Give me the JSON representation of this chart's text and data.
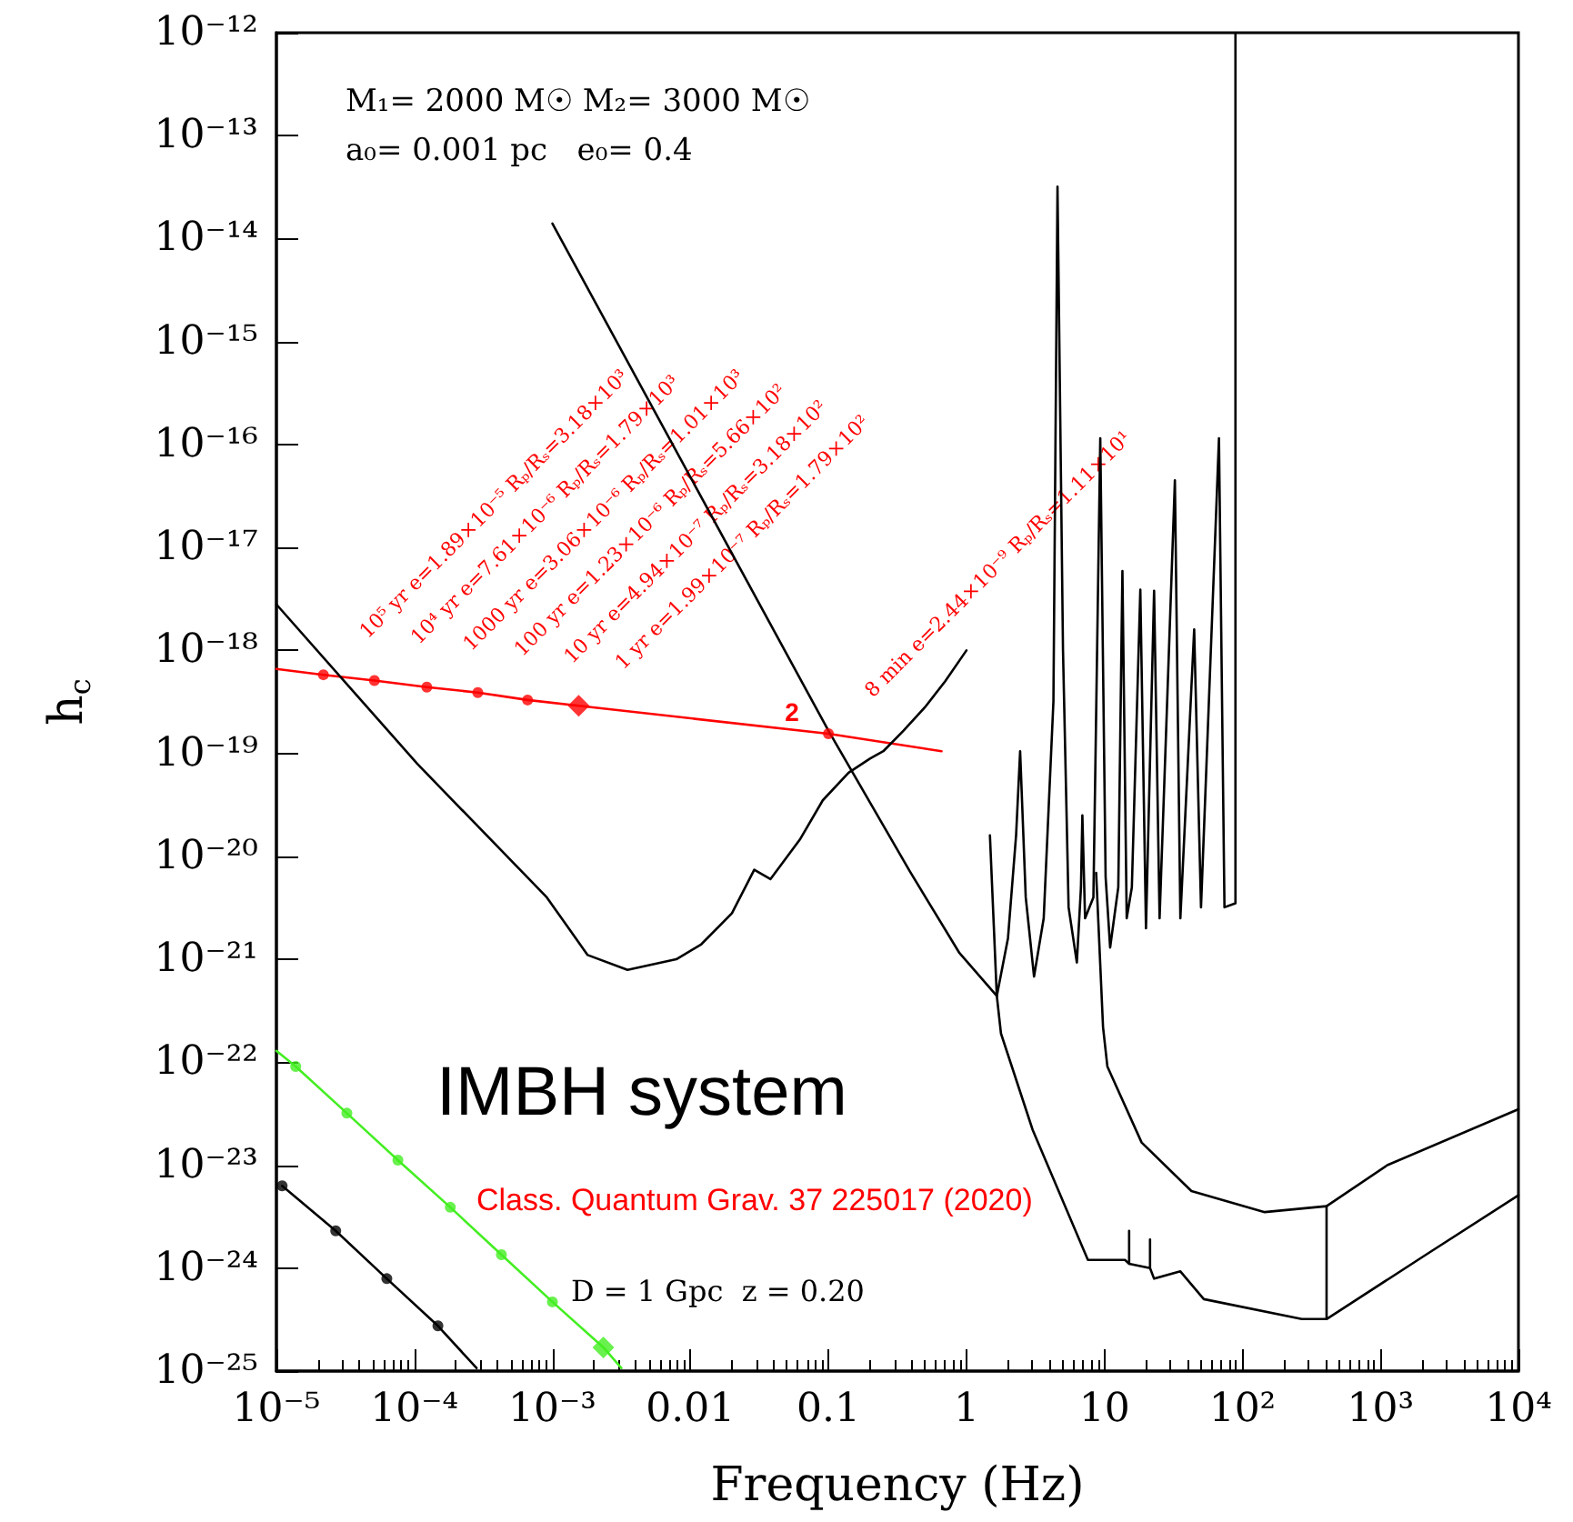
{
  "chart_data": {
    "type": "line",
    "xlabel": "Frequency (Hz)",
    "ylabel": "h$_{c}$",
    "log": "xy",
    "grid": false,
    "marker": "none",
    "line_style": "solid",
    "xlim": [
      1e-05,
      10000
    ],
    "ylim": [
      1e-25,
      1e-12
    ],
    "xticks": [
      {
        "value": 1e-05,
        "label": "10⁻⁵"
      },
      {
        "value": 0.0001,
        "label": "10⁻⁴"
      },
      {
        "value": 0.001,
        "label": "10⁻³"
      },
      0.01,
      0.1,
      1,
      10,
      {
        "value": 100,
        "label": "10²"
      },
      {
        "value": 1000,
        "label": "10³"
      },
      {
        "value": 10000,
        "label": "10⁴"
      }
    ],
    "yticks": [
      {
        "value": 1e-25,
        "label": "10⁻²⁵"
      },
      {
        "value": 1e-24,
        "label": "10⁻²⁴"
      },
      {
        "value": 1e-23,
        "label": "10⁻²³"
      },
      {
        "value": 1e-22,
        "label": "10⁻²²"
      },
      {
        "value": 1e-21,
        "label": "10⁻²¹"
      },
      {
        "value": 1e-20,
        "label": "10⁻²⁰"
      },
      {
        "value": 1e-19,
        "label": "10⁻¹⁹"
      },
      {
        "value": 1e-18,
        "label": "10⁻¹⁸"
      },
      {
        "value": 1e-17,
        "label": "10⁻¹⁷"
      },
      {
        "value": 1e-16,
        "label": "10⁻¹⁶"
      },
      {
        "value": 1e-15,
        "label": "10⁻¹⁵"
      },
      {
        "value": 1e-14,
        "label": "10⁻¹⁴"
      },
      {
        "value": 1e-13,
        "label": "10⁻¹³"
      },
      {
        "value": 1e-12,
        "label": "10⁻¹²"
      }
    ],
    "series": [
      {
        "color": "#ff0000",
        "x": [
          1e-05,
          2.19e-05,
          5.13e-05,
          0.000123,
          0.000288,
          0.000661,
          0.00155,
          0.1,
          0.66
        ],
        "values": [
          6.6e-19,
          5.8e-19,
          5.1e-19,
          4.4e-19,
          3.9e-19,
          3.3e-19,
          2.9e-19,
          1.55e-19,
          1.05e-19
        ]
      },
      {
        "type": "scatter",
        "marker": "circle",
        "color": "#ff0000",
        "x": [
          2.19e-05,
          5.13e-05,
          0.000123,
          0.000288,
          0.000661,
          0.1
        ],
        "values": [
          5.8e-19,
          5.1e-19,
          4.4e-19,
          3.9e-19,
          3.3e-19,
          1.55e-19
        ]
      },
      {
        "type": "scatter",
        "marker": "diamond",
        "color": "#ff0000",
        "x": [
          0.00155
        ],
        "values": [
          2.9e-19
        ]
      },
      {
        "color": "#000000",
        "x": [
          1e-05,
          0.000105,
          0.00091,
          0.0018,
          0.0035,
          0.0079,
          0.012,
          0.02,
          0.029,
          0.038,
          0.062,
          0.091,
          0.14,
          0.2,
          0.25,
          0.35,
          0.5,
          0.7,
          1
        ],
        "values": [
          2.8e-18,
          7.9e-20,
          4e-21,
          1.1e-21,
          7.9e-22,
          1e-21,
          1.4e-21,
          2.8e-21,
          7.4e-21,
          6e-21,
          1.45e-20,
          3.5e-20,
          6.5e-20,
          8.9e-20,
          1.05e-19,
          1.66e-19,
          2.8e-19,
          5e-19,
          1e-18
        ]
      },
      {
        "color": "#000000",
        "x": [
          0.001,
          0.1,
          0.39,
          0.89,
          1.66,
          2.0,
          2.29,
          2.45,
          2.69,
          3.09,
          3.63,
          4.27,
          4.57,
          5.01,
          5.5,
          6.31,
          6.76,
          6.92,
          7.24,
          8.32,
          9.33,
          10.2,
          11,
          12.6,
          13.5,
          14.5,
          15.8,
          18.2,
          20,
          22.9,
          25.1,
          32.4,
          35.5,
          44.7,
          50.1,
          67.6,
          74.1,
          89,
          89
        ],
        "values": [
          1.4e-14,
          1.66e-19,
          7.1e-21,
          1.15e-21,
          4.4e-22,
          1.6e-21,
          1.6e-20,
          1.05e-19,
          4e-21,
          6.8e-22,
          2.5e-21,
          3.2e-19,
          3.2e-14,
          1e-18,
          3.2e-21,
          9.3e-22,
          5e-21,
          2.5e-20,
          2.5e-21,
          4e-21,
          1.15e-16,
          6.3e-21,
          1.3e-21,
          5e-21,
          5.9e-18,
          2.5e-21,
          5e-21,
          3.9e-18,
          2e-21,
          3.8e-18,
          2.5e-21,
          4.5e-17,
          2.5e-21,
          1.6e-18,
          3.2e-21,
          1.15e-16,
          3.2e-21,
          3.5e-21,
          1e-12
        ]
      },
      {
        "color": "#000000",
        "x": [
          1.48,
          1.66,
          1.78,
          3.02,
          7.59,
          14.1,
          15.1,
          15.1,
          15.1,
          21.4,
          21.4,
          21.4,
          22.9,
          35.5,
          52.5,
          269,
          407,
          407,
          407,
          2138,
          10000
        ],
        "values": [
          1.6e-20,
          4.4e-22,
          1.9e-22,
          2.2e-23,
          1.2e-24,
          1.2e-24,
          1.1e-24,
          2.3e-24,
          1.1e-24,
          1e-24,
          1.9e-24,
          1e-24,
          7.9e-25,
          9.3e-25,
          5e-25,
          3.2e-25,
          3.2e-25,
          4e-24,
          3.2e-25,
          1.35e-24,
          5.1e-24
        ]
      },
      {
        "color": "#000000",
        "x": [
          8.71,
          9.77,
          10.5,
          18.6,
          42.7,
          145,
          407,
          1122,
          10000
        ],
        "values": [
          6.9e-21,
          2.2e-22,
          9.1e-23,
          1.66e-23,
          5.6e-24,
          3.5e-24,
          4e-24,
          1e-23,
          3.5e-23
        ]
      },
      {
        "color": "#44ee22",
        "x": [
          1e-05,
          1.38e-05,
          3.24e-05,
          7.59e-05,
          0.000182,
          0.000427,
          0.001,
          0.00234,
          0.00316
        ],
        "values": [
          1.29e-22,
          9.1e-23,
          3.2e-23,
          1.12e-23,
          3.9e-24,
          1.35e-24,
          4.7e-25,
          1.7e-25,
          1.07e-25
        ]
      },
      {
        "type": "scatter",
        "marker": "circle",
        "color": "#44ee22",
        "x": [
          1.38e-05,
          3.24e-05,
          7.59e-05,
          0.000182,
          0.000427,
          0.001
        ],
        "values": [
          9.1e-23,
          3.2e-23,
          1.12e-23,
          3.9e-24,
          1.35e-24,
          4.7e-25
        ]
      },
      {
        "type": "scatter",
        "marker": "diamond",
        "color": "#44ee22",
        "x": [
          0.00234
        ],
        "values": [
          1.7e-25
        ]
      },
      {
        "color": "#000000",
        "x": [
          1.1e-05,
          2.69e-05,
          6.31e-05,
          0.000148,
          0.000282
        ],
        "values": [
          6.3e-24,
          2.3e-24,
          7.9e-25,
          2.75e-25,
          1.07e-25
        ]
      },
      {
        "type": "scatter",
        "marker": "circle",
        "color": "#000000",
        "x": [
          1.1e-05,
          2.69e-05,
          6.31e-05,
          0.000148
        ],
        "values": [
          6.3e-24,
          2.3e-24,
          7.9e-25,
          2.75e-25
        ]
      }
    ],
    "annotations": [
      "M₁= 2000 M☉ M₂= 3000 M☉",
      "a₀= 0.001 pc   e₀= 0.4",
      "D = 1 Gpc  z = 0.20",
      "IMBH system",
      "Class. Quantum Grav. 37 225017 (2020)",
      {
        "text": "10⁵ yr e=1.89×10⁻⁵ Rₚ/Rₛ=3.18×10³",
        "x": 2.19e-05,
        "y": 5.8e-19
      },
      {
        "text": "10⁴ yr e=7.61×10⁻⁶ Rₚ/Rₛ=1.79×10³",
        "x": 5.13e-05,
        "y": 5.1e-19
      },
      {
        "text": "1000 yr e=3.06×10⁻⁶ Rₚ/Rₛ=1.01×10³",
        "x": 0.000123,
        "y": 4.4e-19
      },
      {
        "text": "100 yr e=1.23×10⁻⁶ Rₚ/Rₛ=5.66×10²",
        "x": 0.000288,
        "y": 3.9e-19
      },
      {
        "text": "10 yr e=4.94×10⁻⁷ Rₚ/Rₛ=3.18×10²",
        "x": 0.000661,
        "y": 3.3e-19
      },
      {
        "text": "1 yr e=1.99×10⁻⁷ Rₚ/Rₛ=1.79×10²",
        "x": 0.00155,
        "y": 2.9e-19
      },
      {
        "text": "8 min e=2.44×10⁻⁹ Rₚ/Rₛ=1.11×10¹",
        "x": 0.1,
        "y": 1.55e-19
      },
      {
        "text": "2",
        "x": 0.1,
        "y": 1.55e-19
      }
    ]
  }
}
